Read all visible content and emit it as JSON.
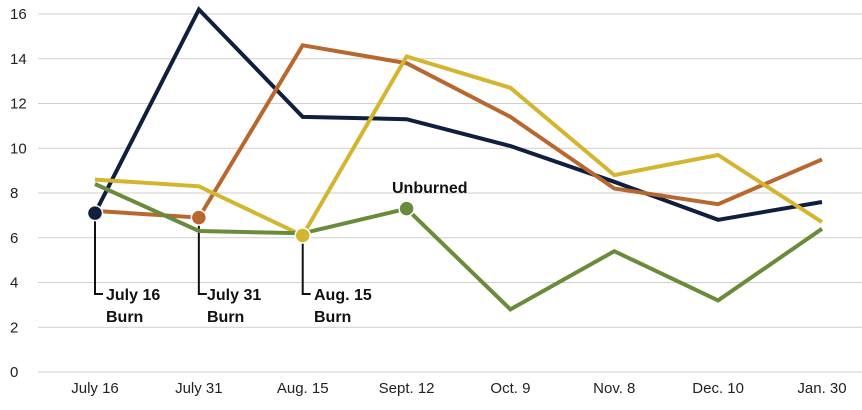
{
  "chart_data": {
    "type": "line",
    "title": "",
    "xlabel": "",
    "ylabel": "",
    "categories": [
      "July 16",
      "July 31",
      "Aug. 15",
      "Sept. 12",
      "Oct. 9",
      "Nov. 8",
      "Dec. 10",
      "Jan. 30"
    ],
    "ylim": [
      0,
      16
    ],
    "yticks": [
      0,
      2,
      4,
      6,
      8,
      10,
      12,
      14,
      16
    ],
    "grid": true,
    "legend": "none",
    "series": [
      {
        "key": "july16",
        "color": "#0f1f3d",
        "values": [
          7.1,
          16.2,
          11.4,
          11.3,
          10.1,
          8.5,
          6.8,
          7.6
        ]
      },
      {
        "key": "july31",
        "color": "#b8672e",
        "values": [
          7.2,
          6.9,
          14.6,
          13.8,
          11.4,
          8.2,
          7.5,
          9.5
        ]
      },
      {
        "key": "aug15",
        "color": "#d4b530",
        "values": [
          8.6,
          8.3,
          6.1,
          14.1,
          12.7,
          8.8,
          9.7,
          6.7
        ]
      },
      {
        "key": "unburned",
        "color": "#6a8c3a",
        "values": [
          8.4,
          6.3,
          6.2,
          7.3,
          2.8,
          5.4,
          3.2,
          6.4
        ]
      }
    ],
    "markers": [
      {
        "series": "july16",
        "index": 0
      },
      {
        "series": "july31",
        "index": 1
      },
      {
        "series": "aug15",
        "index": 2
      },
      {
        "series": "unburned",
        "index": 3
      }
    ],
    "annotations": {
      "july16": [
        "July 16",
        "Burn"
      ],
      "july31": [
        "July 31",
        "Burn"
      ],
      "aug15": [
        "Aug. 15",
        "Burn"
      ],
      "unburned": "Unburned"
    }
  }
}
